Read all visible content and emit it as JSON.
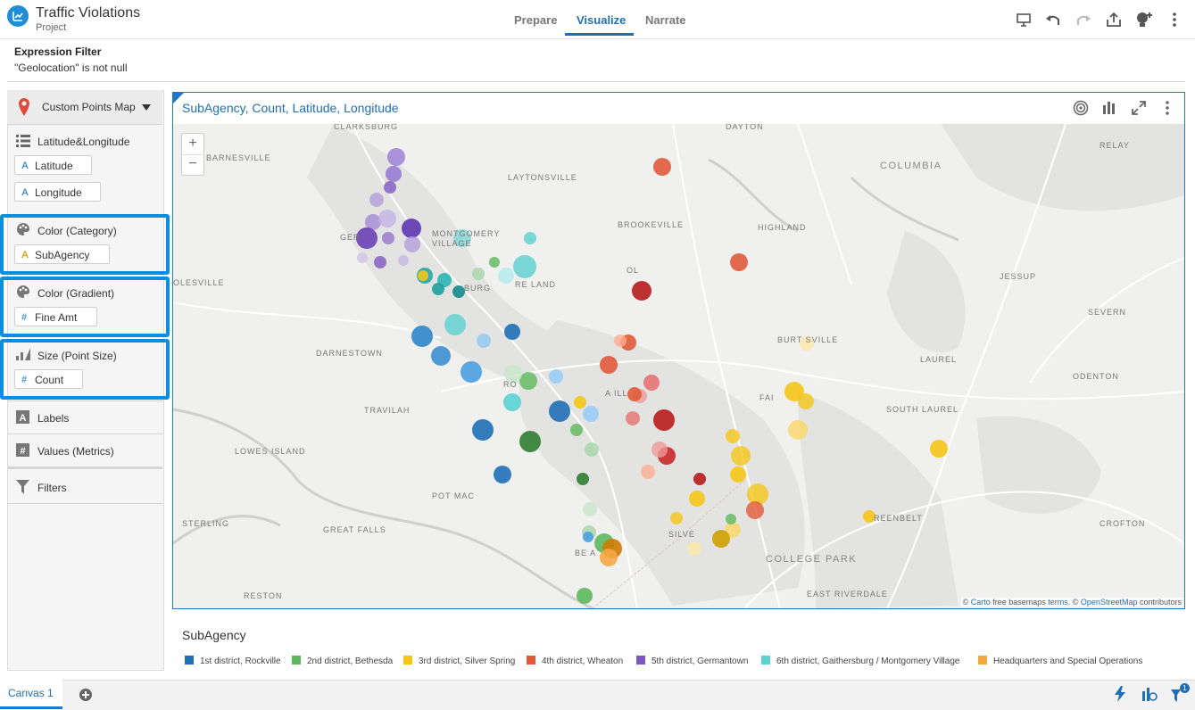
{
  "app": {
    "title": "Traffic Violations",
    "subtitle": "Project"
  },
  "tabs": [
    {
      "label": "Prepare",
      "active": false
    },
    {
      "label": "Visualize",
      "active": true
    },
    {
      "label": "Narrate",
      "active": false
    }
  ],
  "toolbar_icons": [
    "present-icon",
    "undo-icon",
    "redo-icon",
    "share-icon",
    "insights-icon",
    "more-icon"
  ],
  "filter": {
    "title": "Expression Filter",
    "expression": "\"Geolocation\" is not null"
  },
  "left_panel": {
    "viz_type": "Custom Points Map",
    "category": "Latitude&Longitude",
    "latitude": "Latitude",
    "longitude": "Longitude",
    "color_category_label": "Color (Category)",
    "color_category_value": "SubAgency",
    "color_gradient_label": "Color (Gradient)",
    "color_gradient_value": "Fine Amt",
    "size_label": "Size (Point Size)",
    "size_value": "Count",
    "labels": "Labels",
    "values": "Values (Metrics)",
    "filters": "Filters"
  },
  "viz": {
    "title": "SubAgency, Count, Latitude, Longitude",
    "attribution_prefix": "© ",
    "attribution_carto": "Carto",
    "attribution_mid": " free basemaps ",
    "attribution_terms": "terms",
    "attribution_sep": ". © ",
    "attribution_osm": "OpenStreetMap",
    "attribution_end": " contributors",
    "zoom_in": "+",
    "zoom_out": "−"
  },
  "map_labels": {
    "clarksburg": "CLARKSBURG",
    "barnesville": "BARNESVILLE",
    "laytonsville": "LAYTONSVILLE",
    "dayton": "DAYTON",
    "columbia": "COLUMBIA",
    "relay": "RELAY",
    "brookeville": "BROOKEVILLE",
    "highland": "HIGHLAND",
    "montgomery_village": "MONTGOMERY VILLAGE",
    "germantown": "GER",
    "gaithersburg": "BURG",
    "redland": "RE LAND",
    "olney": "OL",
    "jessup": "JESSUP",
    "poolesville": "OLESVILLE",
    "severn": "SEVERN",
    "darnestown": "DARNESTOWN",
    "burtonsville": "BURT  SVILLE",
    "laurel": "LAUREL",
    "odenton": "ODENTON",
    "rockville": "RO",
    "aspen_hill": "A    ILL",
    "travilah": "TRAVILAH",
    "fairland": "FAI",
    "south_laurel": "SOUTH LAUREL",
    "lowes_island": "LOWES ISLAND",
    "potomac": "POT   MAC",
    "sterling": "STERLING",
    "great_falls": "GREAT FALLS",
    "greenbelt": "REENBELT",
    "crofton": "CROFTON",
    "bethesda": "BE      A",
    "silver_spring": "SILVE",
    "college_park": "COLLEGE PARK",
    "reston": "RESTON",
    "east_riverdale": "EAST RIVERDALE"
  },
  "legend": {
    "title": "SubAgency",
    "items": [
      {
        "label": "1st district, Rockville",
        "color": "#1f6fb5"
      },
      {
        "label": "2nd district, Bethesda",
        "color": "#5cb85c"
      },
      {
        "label": "3rd district, Silver Spring",
        "color": "#f5c518"
      },
      {
        "label": "4th district, Wheaton",
        "color": "#e05a3a"
      },
      {
        "label": "5th district, Germantown",
        "color": "#7e57c2"
      },
      {
        "label": "6th district, Gaithersburg / Montgomery Village",
        "color": "#5bd1d1"
      },
      {
        "label": "Headquarters and Special Operations",
        "color": "#f5a742"
      }
    ]
  },
  "footer": {
    "canvas_tab": "Canvas 1",
    "filter_badge": "1"
  }
}
